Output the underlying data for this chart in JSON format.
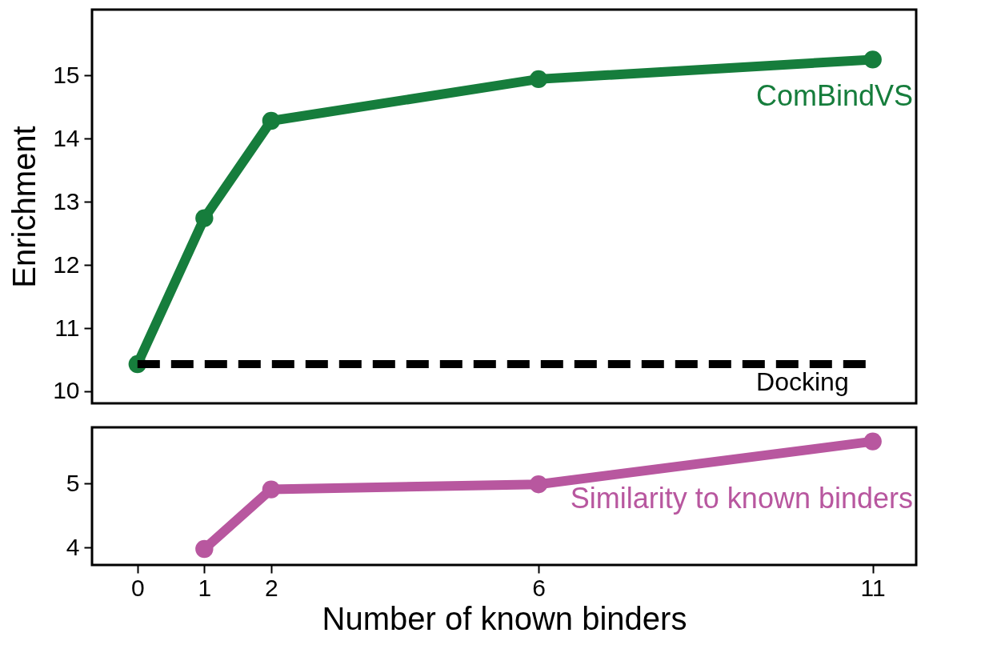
{
  "chart_data": [
    {
      "type": "line",
      "ylabel": "Enrichment",
      "x": [
        0,
        1,
        2,
        6,
        11
      ],
      "xlim": [
        -0.68,
        11.65
      ],
      "ylim": [
        9.81,
        16.04
      ],
      "yticks": [
        10,
        11,
        12,
        13,
        14,
        15
      ],
      "tick_labels": "y",
      "marker": "circle",
      "grid": false,
      "series": [
        {
          "name": "ComBindVS",
          "color": "#167d3c",
          "values": [
            10.43,
            12.74,
            14.28,
            14.94,
            15.25
          ]
        }
      ],
      "ref_lines": [
        {
          "axis": "y",
          "value": 10.43,
          "label": "Docking",
          "color": "#000000",
          "line_style": "dashed"
        }
      ]
    },
    {
      "type": "line",
      "xlabel": "Number of known binders",
      "xlim": [
        -0.68,
        11.65
      ],
      "xticks": [
        0,
        1,
        2,
        6,
        11
      ],
      "ylim": [
        3.73,
        5.88
      ],
      "yticks": [
        4,
        5
      ],
      "marker": "circle",
      "grid": false,
      "series": [
        {
          "name": "Similarity to known binders",
          "color": "#b8579f",
          "x": [
            1,
            2,
            6,
            11
          ],
          "values": [
            3.98,
            4.91,
            4.99,
            5.66
          ]
        }
      ]
    }
  ]
}
